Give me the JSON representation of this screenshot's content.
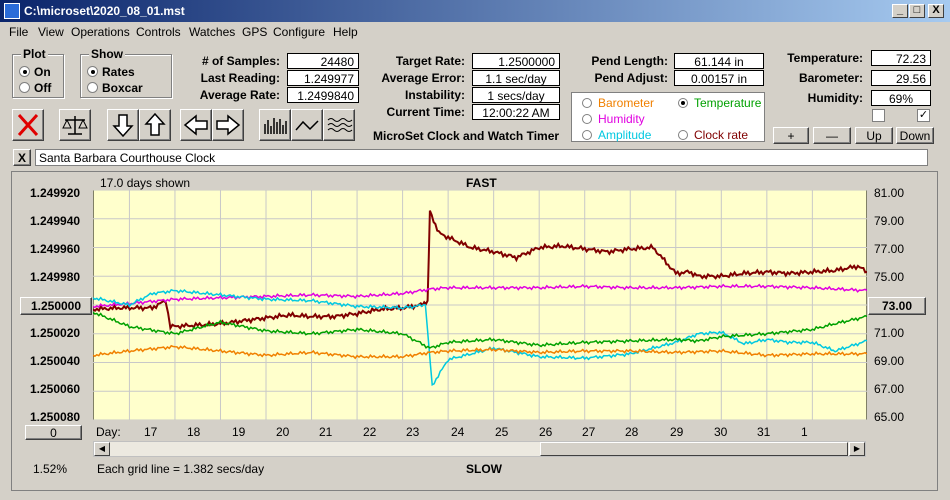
{
  "window": {
    "title": "C:\\microset\\2020_08_01.mst",
    "min_label": "_",
    "max_label": "□",
    "close_label": "X"
  },
  "menu": [
    "File",
    "View",
    "Operations",
    "Controls",
    "Watches",
    "GPS",
    "Configure",
    "Help"
  ],
  "plot_group": {
    "label": "Plot",
    "options": [
      "On",
      "Off"
    ],
    "selected": "On"
  },
  "show_group": {
    "label": "Show",
    "options": [
      "Rates",
      "Boxcar"
    ],
    "selected": "Rates"
  },
  "stats": {
    "samples_label": "# of Samples:",
    "samples": "24480",
    "last_label": "Last Reading:",
    "last": "1.249977",
    "avg_label": "Average Rate:",
    "avg": "1.2499840",
    "target_label": "Target Rate:",
    "target": "1.2500000",
    "avg_err_label": "Average Error:",
    "avg_err": "1.1 sec/day",
    "instab_label": "Instability:",
    "instab": "1 secs/day",
    "time_label": "Current Time:",
    "time": "12:00:22 AM",
    "pend_len_label": "Pend Length:",
    "pend_len": "61.144 in",
    "pend_adj_label": "Pend Adjust:",
    "pend_adj": "0.00157 in",
    "temp_label": "Temperature:",
    "temp": "72.23",
    "baro_label": "Barometer:",
    "baro": "29.56",
    "hum_label": "Humidity:",
    "hum": "69%"
  },
  "product": "MicroSet Clock and Watch Timer",
  "sensor_select": [
    {
      "label": "Barometer",
      "color": "#f08000",
      "selected": false
    },
    {
      "label": "Temperature",
      "color": "#00a000",
      "selected": true
    },
    {
      "label": "Humidity",
      "color": "#e000e0",
      "selected": false
    },
    {
      "label": "Clock rate",
      "color": "#800000",
      "selected": false
    },
    {
      "label": "Amplitude",
      "color": "#00c8e0",
      "selected": false
    }
  ],
  "adjust_buttons": [
    "+",
    "—",
    "Up",
    "Down"
  ],
  "clock_name": "Santa Barbara Courthouse Clock",
  "clock_close": "X",
  "chart_data": {
    "type": "line",
    "top_title": "FAST",
    "bottom_title": "SLOW",
    "days_shown": "17.0 days shown",
    "grid_note": "Each grid line = 1.382 secs/day",
    "percent": "1.52%",
    "left_button": "1.250000",
    "right_button": "73.00",
    "bottom_button": "0",
    "day_label": "Day:",
    "x_ticks": [
      "17",
      "18",
      "19",
      "20",
      "21",
      "22",
      "23",
      "24",
      "25",
      "26",
      "27",
      "28",
      "29",
      "30",
      "31",
      "1"
    ],
    "left_ticks": [
      "1.249920",
      "1.249940",
      "1.249960",
      "1.249980",
      "1.250000",
      "1.250020",
      "1.250040",
      "1.250060",
      "1.250080"
    ],
    "right_ticks": [
      "81.00",
      "79.00",
      "77.00",
      "75.00",
      "73.00",
      "71.00",
      "69.00",
      "67.00",
      "65.00"
    ],
    "x_range": [
      16.2,
      33.2
    ],
    "rate_ylim": [
      1.24992,
      1.25008
    ],
    "env_ylim": [
      65,
      81
    ],
    "series": [
      {
        "key": "clock_rate",
        "color": "#800000",
        "x": [
          16.2,
          16.8,
          17.5,
          17.8,
          17.9,
          18.5,
          19.0,
          19.5,
          20.0,
          20.5,
          21.0,
          21.5,
          22.0,
          22.5,
          23.0,
          23.4,
          23.55,
          23.6,
          23.8,
          24.0,
          24.5,
          25.0,
          25.5,
          26.0,
          26.5,
          27.0,
          27.5,
          28.0,
          28.5,
          29.0,
          29.3,
          29.5,
          30.0,
          30.5,
          31.0,
          31.5,
          32.0,
          32.5,
          33.0,
          33.2
        ],
        "y": [
          1.250003,
          1.250002,
          1.250002,
          1.249997,
          1.250015,
          1.250014,
          1.250013,
          1.250011,
          1.250009,
          1.250007,
          1.250008,
          1.250008,
          1.250006,
          1.250003,
          1.250002,
          1.25,
          1.249997,
          1.249935,
          1.24995,
          1.249953,
          1.24996,
          1.249963,
          1.249967,
          1.24996,
          1.249959,
          1.249961,
          1.249963,
          1.249961,
          1.24996,
          1.249978,
          1.249977,
          1.24998,
          1.24998,
          1.249978,
          1.249977,
          1.249978,
          1.249977,
          1.249976,
          1.249973,
          1.249977
        ]
      },
      {
        "key": "humidity",
        "color": "#e000e0",
        "x": [
          16.2,
          17.0,
          18.0,
          19.0,
          20.0,
          21.0,
          22.0,
          23.0,
          23.6,
          24.0,
          25.0,
          26.0,
          27.0,
          28.0,
          29.0,
          30.0,
          31.0,
          32.0,
          33.2
        ],
        "y": [
          72.9,
          73.1,
          73.4,
          73.5,
          73.6,
          73.7,
          73.6,
          73.8,
          74.1,
          74.2,
          74.2,
          74.2,
          74.3,
          74.2,
          74.2,
          74.3,
          74.3,
          74.2,
          74.0
        ]
      },
      {
        "key": "amplitude",
        "color": "#00c8e0",
        "x": [
          16.2,
          17.0,
          17.5,
          18.0,
          19.0,
          20.0,
          21.0,
          22.0,
          23.0,
          23.5,
          23.65,
          24.0,
          25.0,
          26.0,
          27.0,
          28.0,
          29.0,
          29.5,
          30.0,
          30.5,
          31.0,
          31.5,
          32.0,
          32.5,
          33.2
        ],
        "y": [
          73.5,
          73.0,
          73.8,
          74.0,
          73.7,
          73.4,
          73.3,
          72.9,
          72.8,
          73.0,
          67.4,
          69.2,
          70.0,
          69.4,
          69.3,
          69.6,
          70.4,
          71.0,
          71.1,
          70.3,
          70.6,
          70.4,
          70.4,
          69.8,
          70.5
        ]
      },
      {
        "key": "temperature",
        "color": "#00a000",
        "x": [
          16.2,
          17.0,
          18.0,
          19.0,
          20.0,
          21.0,
          22.0,
          23.0,
          23.6,
          24.0,
          25.0,
          26.0,
          27.0,
          28.0,
          29.0,
          29.5,
          30.0,
          31.0,
          32.0,
          32.5,
          33.2
        ],
        "y": [
          72.5,
          71.5,
          71.0,
          71.8,
          71.2,
          71.0,
          71.3,
          71.0,
          70.0,
          70.4,
          70.6,
          70.2,
          70.4,
          70.5,
          70.6,
          70.5,
          70.8,
          71.0,
          71.3,
          71.7,
          72.2
        ]
      },
      {
        "key": "barometer",
        "color": "#f08000",
        "x": [
          16.2,
          17.0,
          18.0,
          19.0,
          20.0,
          21.0,
          22.0,
          23.0,
          23.6,
          24.0,
          25.0,
          26.0,
          27.0,
          28.0,
          29.0,
          30.0,
          31.0,
          32.0,
          33.2
        ],
        "y": [
          69.5,
          69.8,
          70.1,
          69.8,
          69.5,
          69.7,
          69.4,
          69.4,
          69.7,
          69.8,
          69.9,
          69.7,
          69.8,
          69.8,
          69.7,
          69.8,
          69.5,
          69.6,
          69.6
        ]
      }
    ]
  }
}
